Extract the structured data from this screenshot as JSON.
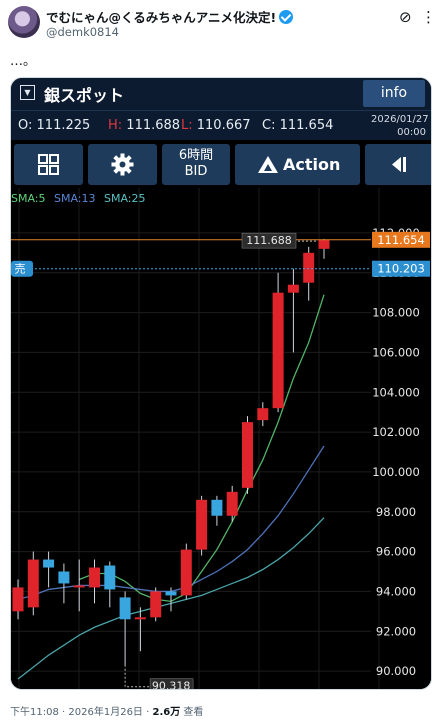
{
  "tweet": {
    "author_name": "でむにゃん@くるみちゃんアニメ化決定!",
    "handle": "@demk0814",
    "text": "…。",
    "time": "下午11:08",
    "date": "2026年1月26日",
    "views": "2.6万",
    "views_label": "查看",
    "sep": "·"
  },
  "app": {
    "title": "銀スポット",
    "info_label": "info",
    "quote": {
      "o_label": "O:",
      "o_value": "111.225",
      "h_label": "H:",
      "h_value": "111.688",
      "l_label": "L:",
      "l_value": "110.667",
      "c_label": "C:",
      "c_value": "111.654",
      "date": "2026/01/27",
      "time": "00:00"
    },
    "toolbar": {
      "period_line1": "6時間",
      "period_line2": "BID",
      "action_label": "Action"
    }
  },
  "chart_data": {
    "type": "candlestick",
    "ylim": [
      89.0,
      113.0
    ],
    "y_ticks": [
      "90.000",
      "92.000",
      "94.000",
      "96.000",
      "98.000",
      "100.000",
      "102.000",
      "104.000",
      "106.000",
      "108.000",
      "110.000",
      "112.000"
    ],
    "legend": [
      {
        "label": "SMA:5",
        "color": "#5fd37a"
      },
      {
        "label": "SMA:13",
        "color": "#5b86d6"
      },
      {
        "label": "SMA:25",
        "color": "#57c0c4"
      }
    ],
    "up_color": "#e0242c",
    "down_color": "#3aa6e0",
    "candles": [
      {
        "o": 93.0,
        "h": 94.6,
        "l": 92.6,
        "c": 94.2
      },
      {
        "o": 93.2,
        "h": 96.0,
        "l": 92.8,
        "c": 95.6
      },
      {
        "o": 95.6,
        "h": 96.0,
        "l": 94.2,
        "c": 95.2
      },
      {
        "o": 95.0,
        "h": 95.4,
        "l": 93.4,
        "c": 94.4
      },
      {
        "o": 94.2,
        "h": 95.6,
        "l": 93.0,
        "c": 94.3
      },
      {
        "o": 94.2,
        "h": 95.6,
        "l": 93.4,
        "c": 95.2
      },
      {
        "o": 95.3,
        "h": 95.5,
        "l": 93.2,
        "c": 94.1
      },
      {
        "o": 93.7,
        "h": 94.0,
        "l": 90.3,
        "c": 92.6
      },
      {
        "o": 92.6,
        "h": 93.2,
        "l": 91.0,
        "c": 92.7
      },
      {
        "o": 92.7,
        "h": 94.2,
        "l": 92.5,
        "c": 94.0
      },
      {
        "o": 94.0,
        "h": 94.2,
        "l": 93.0,
        "c": 93.8
      },
      {
        "o": 93.8,
        "h": 96.4,
        "l": 93.6,
        "c": 96.1
      },
      {
        "o": 96.1,
        "h": 98.8,
        "l": 95.8,
        "c": 98.6
      },
      {
        "o": 98.6,
        "h": 98.8,
        "l": 97.3,
        "c": 97.8
      },
      {
        "o": 97.8,
        "h": 99.3,
        "l": 97.5,
        "c": 99.0
      },
      {
        "o": 99.2,
        "h": 102.8,
        "l": 98.9,
        "c": 102.5
      },
      {
        "o": 102.6,
        "h": 103.5,
        "l": 102.3,
        "c": 103.2
      },
      {
        "o": 103.2,
        "h": 110.0,
        "l": 103.0,
        "c": 109.0
      },
      {
        "o": 109.0,
        "h": 110.2,
        "l": 106.0,
        "c": 109.4
      },
      {
        "o": 109.5,
        "h": 111.3,
        "l": 108.6,
        "c": 111.0
      },
      {
        "o": 111.2,
        "h": 111.7,
        "l": 110.7,
        "c": 111.65
      }
    ],
    "sma_series": [
      {
        "name": "SMA:5",
        "color": "#5fd37a",
        "values": [
          null,
          null,
          null,
          null,
          94.6,
          94.9,
          94.9,
          94.5,
          93.9,
          93.6,
          93.5,
          93.9,
          95.0,
          96.1,
          97.5,
          99.1,
          100.6,
          102.5,
          104.7,
          106.5,
          108.9
        ]
      },
      {
        "name": "SMA:13",
        "color": "#5b86d6",
        "values": [
          93.6,
          93.8,
          94.1,
          94.2,
          94.3,
          94.3,
          94.3,
          94.2,
          94.1,
          94.0,
          94.0,
          94.2,
          94.6,
          95.0,
          95.5,
          96.1,
          96.9,
          97.8,
          98.9,
          100.1,
          101.3
        ]
      },
      {
        "name": "SMA:25",
        "color": "#57c0c4",
        "values": [
          89.6,
          90.2,
          90.8,
          91.3,
          91.8,
          92.2,
          92.5,
          92.8,
          93.0,
          93.2,
          93.4,
          93.6,
          93.8,
          94.1,
          94.4,
          94.7,
          95.1,
          95.6,
          96.2,
          96.9,
          97.7
        ]
      }
    ],
    "current_price": "111.654",
    "bid_price": "110.203",
    "bid_label": "売",
    "high_marker": "111.688",
    "low_marker": "90.318",
    "high_value": 111.688,
    "low_value": 90.318,
    "current_value": 111.654,
    "bid_value": 110.203,
    "grid": true
  }
}
